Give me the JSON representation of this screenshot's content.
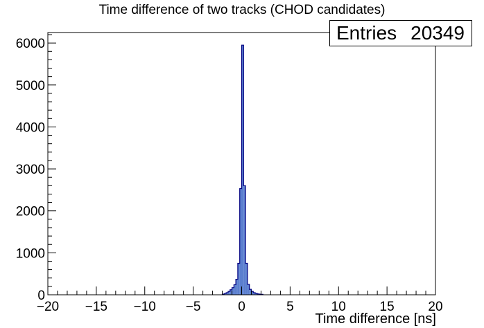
{
  "chart_data": {
    "type": "bar",
    "title": "Time difference of two tracks (CHOD candidates)",
    "xlabel": "Time difference [ns]",
    "ylabel": "",
    "xlim": [
      -20,
      20
    ],
    "ylim": [
      0,
      6250
    ],
    "x_ticks": [
      "−20",
      "−15",
      "−10",
      "−5",
      "0",
      "5",
      "10",
      "15",
      "20"
    ],
    "y_ticks": [
      "0",
      "1000",
      "2000",
      "3000",
      "4000",
      "5000",
      "6000"
    ],
    "stats": {
      "label": "Entries",
      "value": "20349"
    },
    "bin_width": 0.2,
    "bins": [
      {
        "x0": -2.0,
        "y": 15
      },
      {
        "x0": -1.8,
        "y": 30
      },
      {
        "x0": -1.6,
        "y": 50
      },
      {
        "x0": -1.4,
        "y": 80
      },
      {
        "x0": -1.2,
        "y": 120
      },
      {
        "x0": -1.0,
        "y": 170
      },
      {
        "x0": -0.8,
        "y": 240
      },
      {
        "x0": -0.6,
        "y": 370
      },
      {
        "x0": -0.4,
        "y": 750
      },
      {
        "x0": -0.2,
        "y": 2530
      },
      {
        "x0": 0.0,
        "y": 5950
      },
      {
        "x0": 0.2,
        "y": 2600
      },
      {
        "x0": 0.4,
        "y": 750
      },
      {
        "x0": 0.6,
        "y": 250
      },
      {
        "x0": 0.8,
        "y": 130
      },
      {
        "x0": 1.0,
        "y": 80
      },
      {
        "x0": 1.2,
        "y": 50
      },
      {
        "x0": 1.4,
        "y": 35
      },
      {
        "x0": 1.6,
        "y": 20
      },
      {
        "x0": 1.8,
        "y": 15
      },
      {
        "x0": 2.0,
        "y": 10
      }
    ],
    "fill_color": "#5b7fcf",
    "line_color": "#000080",
    "grid": false,
    "legend": "none"
  }
}
